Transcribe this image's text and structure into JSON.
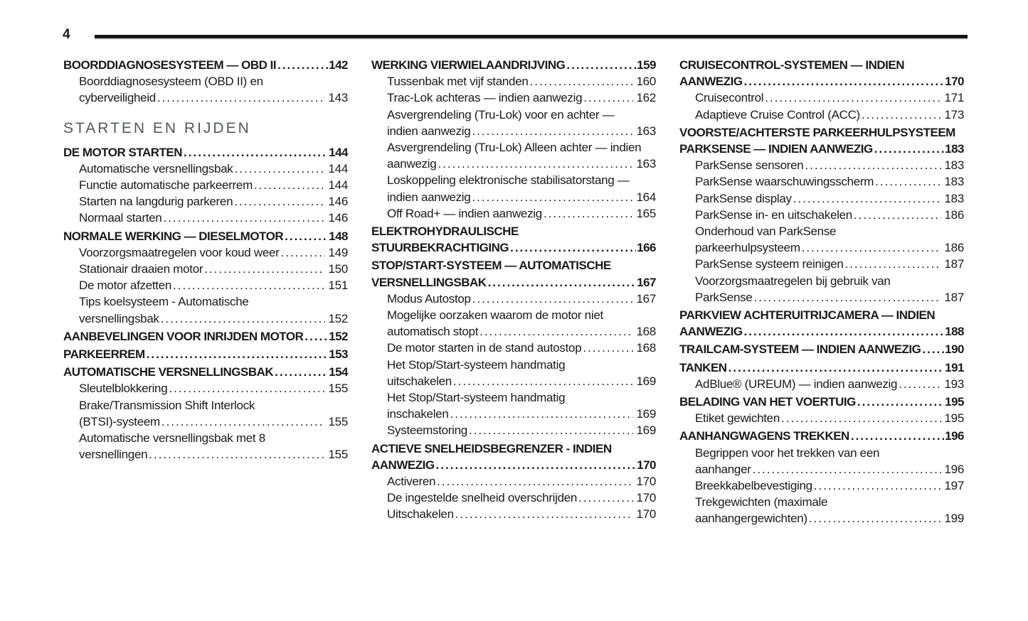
{
  "page": {
    "number": "4"
  },
  "colors": {
    "text": "#1a1a1a",
    "section_header": "#55585d",
    "rule": "#161616"
  },
  "toc": {
    "columns": [
      {
        "entries": [
          {
            "style": "main",
            "lines": [
              {
                "text": "BOORDDIAGNOSESYSTEEM — OBD II",
                "page": "142"
              }
            ]
          },
          {
            "style": "sub",
            "lines": [
              {
                "text": "Boorddiagnosesysteem (OBD II) en"
              },
              {
                "text": "cyberveiligheid",
                "page": "143"
              }
            ]
          },
          {
            "style": "section",
            "lines": [
              {
                "text": "STARTEN EN RIJDEN"
              }
            ]
          },
          {
            "style": "main",
            "lines": [
              {
                "text": "DE MOTOR STARTEN",
                "page": "144"
              }
            ]
          },
          {
            "style": "sub",
            "lines": [
              {
                "text": "Automatische versnellingsbak",
                "page": "144"
              }
            ]
          },
          {
            "style": "sub",
            "lines": [
              {
                "text": "Functie automatische parkeerrem",
                "page": "144"
              }
            ]
          },
          {
            "style": "sub",
            "lines": [
              {
                "text": "Starten na langdurig parkeren",
                "page": "146"
              }
            ]
          },
          {
            "style": "sub",
            "lines": [
              {
                "text": "Normaal starten",
                "page": "146"
              }
            ]
          },
          {
            "style": "main",
            "lines": [
              {
                "text": "NORMALE WERKING — DIESELMOTOR",
                "page": "148"
              }
            ]
          },
          {
            "style": "sub",
            "lines": [
              {
                "text": "Voorzorgsmaatregelen voor koud weer",
                "page": "149"
              }
            ]
          },
          {
            "style": "sub",
            "lines": [
              {
                "text": "Stationair draaien motor",
                "page": "150"
              }
            ]
          },
          {
            "style": "sub",
            "lines": [
              {
                "text": "De motor afzetten",
                "page": "151"
              }
            ]
          },
          {
            "style": "sub",
            "lines": [
              {
                "text": "Tips koelsysteem - Automatische"
              },
              {
                "text": "versnellingsbak",
                "page": "152"
              }
            ]
          },
          {
            "style": "main",
            "lines": [
              {
                "text": "AANBEVELINGEN VOOR INRIJDEN MOTOR",
                "page": "152"
              }
            ]
          },
          {
            "style": "main",
            "lines": [
              {
                "text": "PARKEERREM",
                "page": "153"
              }
            ]
          },
          {
            "style": "main",
            "lines": [
              {
                "text": "AUTOMATISCHE VERSNELLINGSBAK",
                "page": "154"
              }
            ]
          },
          {
            "style": "sub",
            "lines": [
              {
                "text": "Sleutelblokkering",
                "page": "155"
              }
            ]
          },
          {
            "style": "sub",
            "lines": [
              {
                "text": "Brake/Transmission Shift Interlock"
              },
              {
                "text": "(BTSI)-systeem",
                "page": "155"
              }
            ]
          },
          {
            "style": "sub",
            "lines": [
              {
                "text": "Automatische versnellingsbak met 8"
              },
              {
                "text": "versnellingen",
                "page": "155"
              }
            ]
          }
        ]
      },
      {
        "entries": [
          {
            "style": "main",
            "lines": [
              {
                "text": "WERKING VIERWIELAANDRIJVING",
                "page": "159"
              }
            ]
          },
          {
            "style": "sub",
            "lines": [
              {
                "text": "Tussenbak met vijf standen",
                "page": "160"
              }
            ]
          },
          {
            "style": "sub",
            "lines": [
              {
                "text": "Trac-Lok achteras — indien aanwezig",
                "page": "162"
              }
            ]
          },
          {
            "style": "sub",
            "lines": [
              {
                "text": "Asvergrendeling (Tru-Lok) voor en achter —"
              },
              {
                "text": "indien aanwezig",
                "page": "163"
              }
            ]
          },
          {
            "style": "sub",
            "lines": [
              {
                "text": "Asvergrendeling (Tru-Lok) Alleen achter — indien"
              },
              {
                "text": "aanwezig",
                "page": "163"
              }
            ]
          },
          {
            "style": "sub",
            "lines": [
              {
                "text": "Loskoppeling elektronische stabilisatorstang —"
              },
              {
                "text": "indien aanwezig",
                "page": "164"
              }
            ]
          },
          {
            "style": "sub",
            "lines": [
              {
                "text": "Off Road+ — indien aanwezig",
                "page": "165"
              }
            ]
          },
          {
            "style": "main",
            "lines": [
              {
                "text": "ELEKTROHYDRAULISCHE"
              },
              {
                "text": "STUURBEKRACHTIGING",
                "page": "166"
              }
            ]
          },
          {
            "style": "main",
            "lines": [
              {
                "text": "STOP/START-SYSTEEM — AUTOMATISCHE"
              },
              {
                "text": "VERSNELLINGSBAK",
                "page": "167"
              }
            ]
          },
          {
            "style": "sub",
            "lines": [
              {
                "text": "Modus Autostop",
                "page": "167"
              }
            ]
          },
          {
            "style": "sub",
            "lines": [
              {
                "text": "Mogelijke oorzaken waarom de motor niet"
              },
              {
                "text": "automatisch stopt",
                "page": "168"
              }
            ]
          },
          {
            "style": "sub",
            "lines": [
              {
                "text": "De motor starten in de stand autostop",
                "page": "168"
              }
            ]
          },
          {
            "style": "sub",
            "lines": [
              {
                "text": "Het Stop/Start-systeem handmatig"
              },
              {
                "text": "uitschakelen",
                "page": "169"
              }
            ]
          },
          {
            "style": "sub",
            "lines": [
              {
                "text": "Het Stop/Start-systeem handmatig"
              },
              {
                "text": "inschakelen",
                "page": "169"
              }
            ]
          },
          {
            "style": "sub",
            "lines": [
              {
                "text": "Systeemstoring",
                "page": "169"
              }
            ]
          },
          {
            "style": "main",
            "lines": [
              {
                "text": "ACTIEVE SNELHEIDSBEGRENZER - INDIEN"
              },
              {
                "text": "AANWEZIG",
                "page": "170"
              }
            ]
          },
          {
            "style": "sub",
            "lines": [
              {
                "text": "Activeren",
                "page": "170"
              }
            ]
          },
          {
            "style": "sub",
            "lines": [
              {
                "text": "De ingestelde snelheid overschrijden",
                "page": "170"
              }
            ]
          },
          {
            "style": "sub",
            "lines": [
              {
                "text": "Uitschakelen",
                "page": "170"
              }
            ]
          }
        ]
      },
      {
        "entries": [
          {
            "style": "main",
            "lines": [
              {
                "text": "CRUISECONTROL-SYSTEMEN — INDIEN"
              },
              {
                "text": "AANWEZIG",
                "page": "170"
              }
            ]
          },
          {
            "style": "sub",
            "lines": [
              {
                "text": "Cruisecontrol",
                "page": "171"
              }
            ]
          },
          {
            "style": "sub",
            "lines": [
              {
                "text": "Adaptieve Cruise Control (ACC)",
                "page": "173"
              }
            ]
          },
          {
            "style": "main",
            "lines": [
              {
                "text": "VOORSTE/ACHTERSTE PARKEERHULPSYSTEEM"
              },
              {
                "text": "PARKSENSE — INDIEN AANWEZIG",
                "page": "183"
              }
            ]
          },
          {
            "style": "sub",
            "lines": [
              {
                "text": "ParkSense sensoren",
                "page": "183"
              }
            ]
          },
          {
            "style": "sub",
            "lines": [
              {
                "text": "ParkSense waarschuwingsscherm",
                "page": "183"
              }
            ]
          },
          {
            "style": "sub",
            "lines": [
              {
                "text": "ParkSense display",
                "page": "183"
              }
            ]
          },
          {
            "style": "sub",
            "lines": [
              {
                "text": "ParkSense in- en uitschakelen",
                "page": "186"
              }
            ]
          },
          {
            "style": "sub",
            "lines": [
              {
                "text": "Onderhoud van ParkSense"
              },
              {
                "text": "parkeerhulpsysteem",
                "page": "186"
              }
            ]
          },
          {
            "style": "sub",
            "lines": [
              {
                "text": "ParkSense systeem reinigen",
                "page": "187"
              }
            ]
          },
          {
            "style": "sub",
            "lines": [
              {
                "text": "Voorzorgsmaatregelen bij gebruik van"
              },
              {
                "text": "ParkSense",
                "page": "187"
              }
            ]
          },
          {
            "style": "main",
            "lines": [
              {
                "text": "PARKVIEW ACHTERUITRIJCAMERA — INDIEN"
              },
              {
                "text": "AANWEZIG",
                "page": "188"
              }
            ]
          },
          {
            "style": "main",
            "lines": [
              {
                "text": "TRAILCAM-SYSTEEM — INDIEN AANWEZIG",
                "page": "190"
              }
            ]
          },
          {
            "style": "main",
            "lines": [
              {
                "text": "TANKEN",
                "page": "191"
              }
            ]
          },
          {
            "style": "sub",
            "lines": [
              {
                "text": "AdBlue® (UREUM) — indien aanwezig",
                "page": "193"
              }
            ]
          },
          {
            "style": "main",
            "lines": [
              {
                "text": "BELADING VAN HET VOERTUIG",
                "page": "195"
              }
            ]
          },
          {
            "style": "sub",
            "lines": [
              {
                "text": "Etiket gewichten",
                "page": "195"
              }
            ]
          },
          {
            "style": "main",
            "lines": [
              {
                "text": "AANHANGWAGENS TREKKEN",
                "page": "196"
              }
            ]
          },
          {
            "style": "sub",
            "lines": [
              {
                "text": "Begrippen voor het trekken van een"
              },
              {
                "text": "aanhanger",
                "page": "196"
              }
            ]
          },
          {
            "style": "sub",
            "lines": [
              {
                "text": "Breekkabelbevestiging",
                "page": "197"
              }
            ]
          },
          {
            "style": "sub",
            "lines": [
              {
                "text": "Trekgewichten (maximale"
              },
              {
                "text": "aanhangergewichten)",
                "page": "199"
              }
            ]
          }
        ]
      }
    ]
  }
}
